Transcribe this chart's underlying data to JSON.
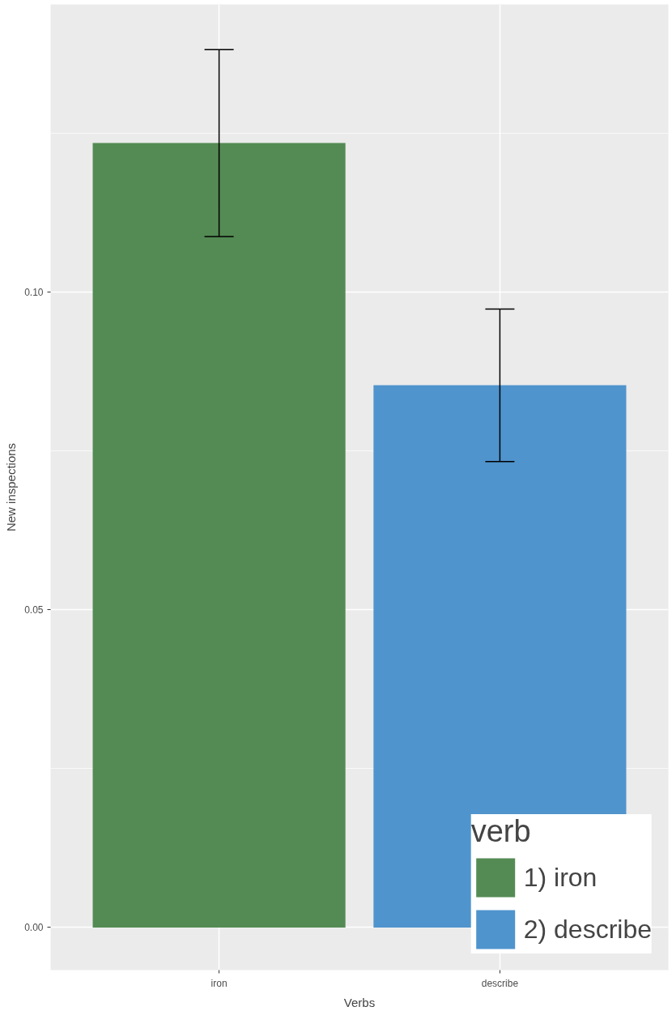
{
  "chart_data": {
    "type": "bar",
    "xlabel": "Verbs",
    "ylabel": "New inspections",
    "legend_title": "verb",
    "categories": [
      "iron",
      "describe"
    ],
    "series": [
      {
        "name": "1) iron",
        "color": "#548b54",
        "values": [
          0.1234,
          null
        ],
        "errors": [
          [
            0.1087,
            0.1381
          ],
          null
        ]
      },
      {
        "name": "2) describe",
        "color": "#4f94cd",
        "values": [
          null,
          0.0853
        ],
        "errors": [
          null,
          [
            0.0733,
            0.0973
          ]
        ]
      }
    ],
    "ylim": [
      -0.0067,
      0.1452
    ],
    "yticks": [
      {
        "value": 0,
        "label": "0.00"
      },
      {
        "value": 0.05,
        "label": "0.05"
      },
      {
        "value": 0.1,
        "label": "0.10"
      }
    ],
    "grid": true,
    "legend": "bottom right"
  }
}
